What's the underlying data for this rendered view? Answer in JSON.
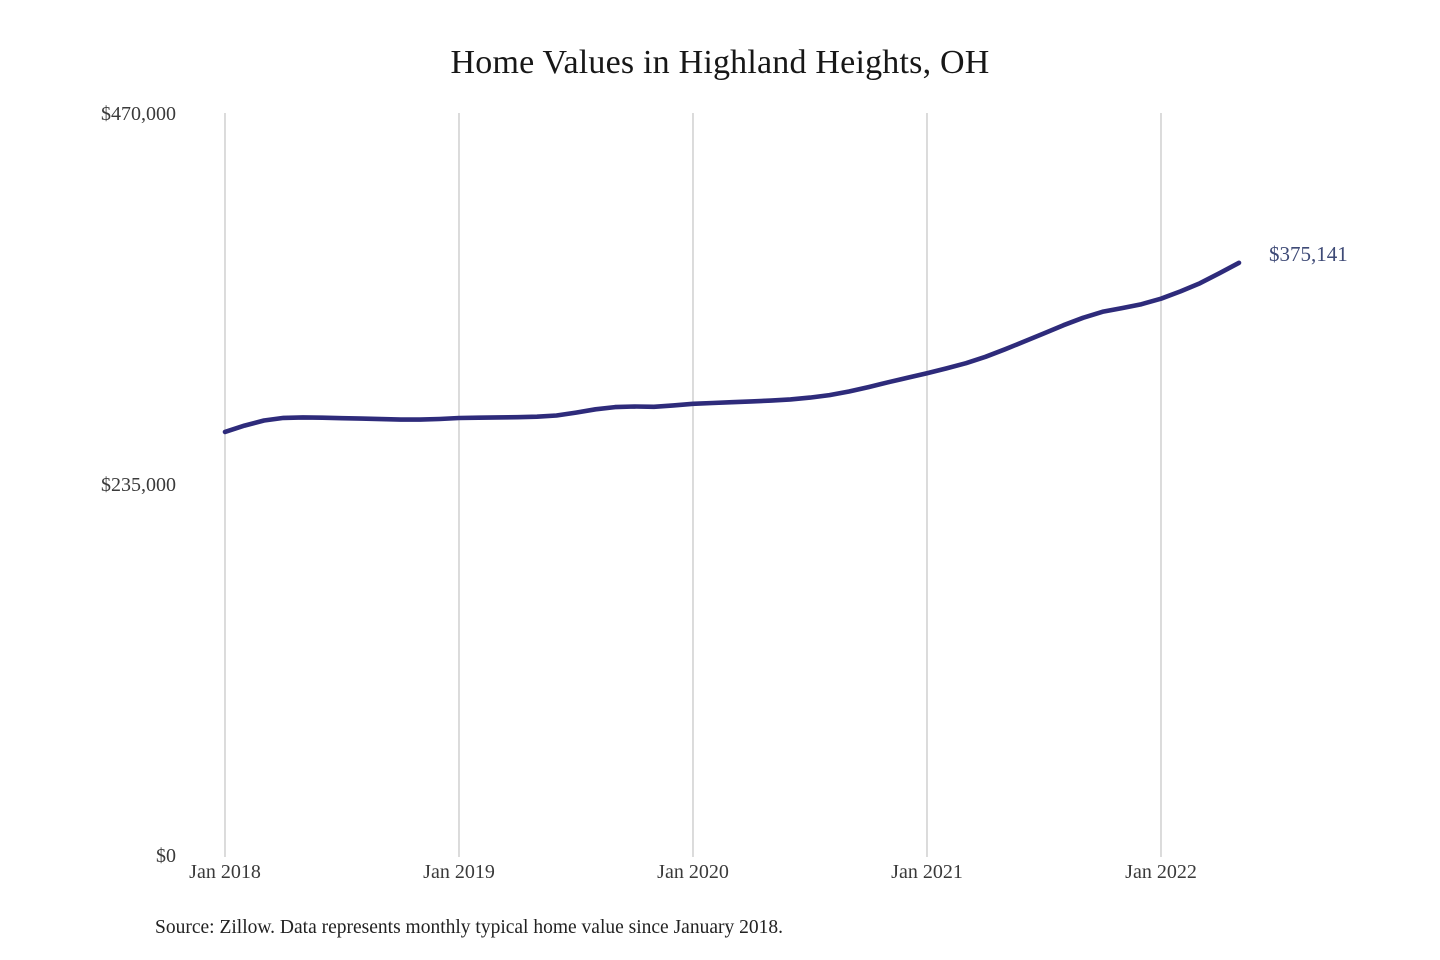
{
  "title": "Home Values in Highland Heights, OH",
  "source_note": "Source: Zillow. Data represents monthly typical home value since January 2018.",
  "colors": {
    "line": "#2e2b7b",
    "end_label": "#3e4a76",
    "gridline": "#cccccc",
    "axis_text": "#3a3a3a",
    "title_text": "#171717",
    "background": "#ffffff"
  },
  "chart_data": {
    "type": "line",
    "title": "Home Values in Highland Heights, OH",
    "series_name": "Monthly typical home value (Zillow)",
    "x_unit": "month",
    "x_start": "Jan 2018",
    "x_end": "May 2022",
    "xlabel": "",
    "ylabel": "",
    "ylim": [
      0,
      470000
    ],
    "grid": "vertical-only",
    "legend": "none",
    "x_tick_labels": [
      "Jan 2018",
      "Jan 2019",
      "Jan 2020",
      "Jan 2021",
      "Jan 2022"
    ],
    "x_tick_month_indices": [
      0,
      12,
      24,
      36,
      48
    ],
    "y_ticks": [
      {
        "value": 470000,
        "label": "$470,000"
      },
      {
        "value": 235000,
        "label": "$235,000"
      },
      {
        "value": 0,
        "label": "$0"
      }
    ],
    "end_label": "$375,141",
    "end_value": 375141,
    "values": [
      268000,
      272000,
      275200,
      276900,
      277200,
      277000,
      276700,
      276400,
      276100,
      275800,
      275800,
      276200,
      276800,
      277000,
      277200,
      277300,
      277600,
      278400,
      280200,
      282300,
      283700,
      284100,
      283900,
      284800,
      285800,
      286300,
      286800,
      287300,
      287800,
      288600,
      289700,
      291300,
      293600,
      296400,
      299400,
      302300,
      305200,
      308200,
      311500,
      315600,
      320300,
      325300,
      330400,
      335600,
      340300,
      344100,
      346400,
      348900,
      352400,
      357000,
      362200,
      368500,
      375141
    ]
  }
}
